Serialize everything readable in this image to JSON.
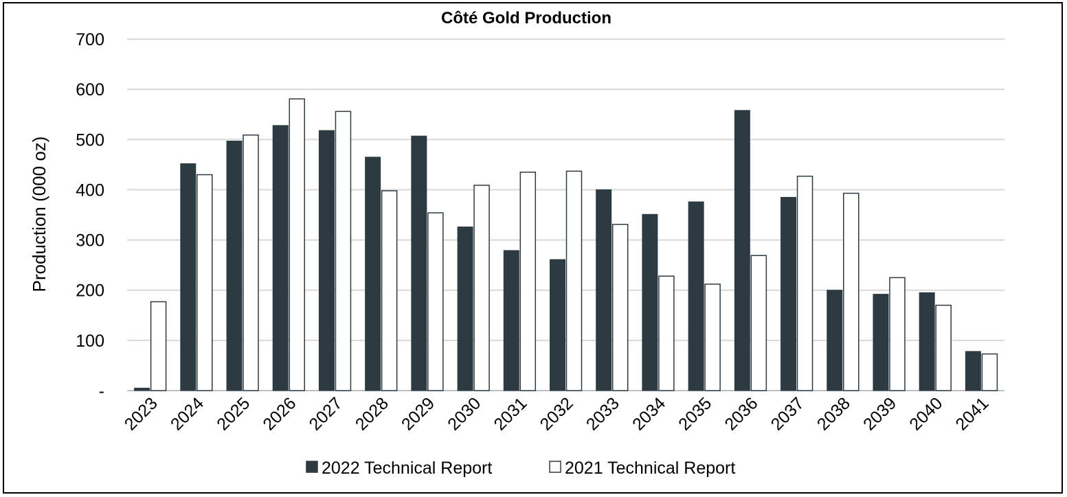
{
  "chart_data": {
    "type": "bar",
    "title": "Côté Gold Production",
    "xlabel": "",
    "ylabel": "Production (000 oz)",
    "ylim": [
      0,
      700
    ],
    "yticks": [
      {
        "value": 0,
        "label": "-"
      },
      {
        "value": 100,
        "label": "100"
      },
      {
        "value": 200,
        "label": "200"
      },
      {
        "value": 300,
        "label": "300"
      },
      {
        "value": 400,
        "label": "400"
      },
      {
        "value": 500,
        "label": "500"
      },
      {
        "value": 600,
        "label": "600"
      },
      {
        "value": 700,
        "label": "700"
      }
    ],
    "grid": true,
    "legend_position": "bottom",
    "categories": [
      "2023",
      "2024",
      "2025",
      "2026",
      "2027",
      "2028",
      "2029",
      "2030",
      "2031",
      "2032",
      "2033",
      "2034",
      "2035",
      "2036",
      "2037",
      "2038",
      "2039",
      "2040",
      "2041"
    ],
    "series": [
      {
        "name": "2022 Technical Report",
        "color": "#2d3a42",
        "values": [
          5,
          452,
          497,
          528,
          518,
          465,
          507,
          326,
          279,
          261,
          400,
          351,
          376,
          558,
          385,
          200,
          192,
          195,
          78
        ]
      },
      {
        "name": "2021 Technical Report",
        "color": "#ffffff",
        "values": [
          177,
          430,
          509,
          581,
          556,
          398,
          354,
          409,
          435,
          437,
          331,
          228,
          212,
          269,
          427,
          393,
          225,
          170,
          73
        ]
      }
    ]
  }
}
